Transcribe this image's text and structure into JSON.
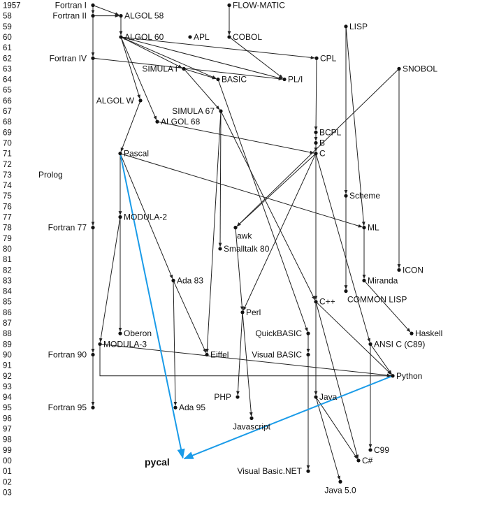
{
  "years": [
    "1957",
    "58",
    "59",
    "60",
    "61",
    "62",
    "63",
    "64",
    "65",
    "66",
    "67",
    "68",
    "69",
    "70",
    "71",
    "72",
    "73",
    "74",
    "75",
    "76",
    "77",
    "78",
    "79",
    "80",
    "81",
    "82",
    "83",
    "84",
    "85",
    "86",
    "87",
    "88",
    "89",
    "90",
    "91",
    "92",
    "93",
    "94",
    "95",
    "96",
    "97",
    "98",
    "99",
    "00",
    "01",
    "02",
    "03"
  ],
  "colors": {
    "edge": "#222222",
    "highlight": "#1a9be8"
  },
  "languages": [
    {
      "id": "fortran1",
      "label": "Fortran I",
      "year": "1957"
    },
    {
      "id": "fortran2",
      "label": "Fortran II",
      "year": "58"
    },
    {
      "id": "algol58",
      "label": "ALGOL 58",
      "year": "58"
    },
    {
      "id": "flowmatic",
      "label": "FLOW-MATIC",
      "year": "1957"
    },
    {
      "id": "lisp",
      "label": "LISP",
      "year": "59"
    },
    {
      "id": "algol60",
      "label": "ALGOL 60",
      "year": "60"
    },
    {
      "id": "apl",
      "label": "APL",
      "year": "60"
    },
    {
      "id": "cobol",
      "label": "COBOL",
      "year": "60"
    },
    {
      "id": "fortran4",
      "label": "Fortran IV",
      "year": "62"
    },
    {
      "id": "cpl",
      "label": "CPL",
      "year": "62"
    },
    {
      "id": "snobol",
      "label": "SNOBOL",
      "year": "63"
    },
    {
      "id": "simula1",
      "label": "SIMULA I",
      "year": "63"
    },
    {
      "id": "basic",
      "label": "BASIC",
      "year": "64"
    },
    {
      "id": "pli",
      "label": "PL/I",
      "year": "64"
    },
    {
      "id": "algolw",
      "label": "ALGOL W",
      "year": "66"
    },
    {
      "id": "simula67",
      "label": "SIMULA 67",
      "year": "67"
    },
    {
      "id": "algol68",
      "label": "ALGOL 68",
      "year": "68"
    },
    {
      "id": "bcpl",
      "label": "BCPL",
      "year": "69"
    },
    {
      "id": "b",
      "label": "B",
      "year": "70"
    },
    {
      "id": "pascal",
      "label": "Pascal",
      "year": "71"
    },
    {
      "id": "c",
      "label": "C",
      "year": "71"
    },
    {
      "id": "prolog",
      "label": "Prolog",
      "year": "73"
    },
    {
      "id": "scheme",
      "label": "Scheme",
      "year": "75"
    },
    {
      "id": "modula2",
      "label": "MODULA-2",
      "year": "77"
    },
    {
      "id": "fortran77",
      "label": "Fortran 77",
      "year": "78"
    },
    {
      "id": "awk",
      "label": "awk",
      "year": "78"
    },
    {
      "id": "ml",
      "label": "ML",
      "year": "78"
    },
    {
      "id": "smalltalk80",
      "label": "Smalltalk 80",
      "year": "80"
    },
    {
      "id": "icon",
      "label": "ICON",
      "year": "82"
    },
    {
      "id": "ada83",
      "label": "Ada 83",
      "year": "83"
    },
    {
      "id": "miranda",
      "label": "Miranda",
      "year": "83"
    },
    {
      "id": "commonlisp",
      "label": "COMMON LISP",
      "year": "84"
    },
    {
      "id": "cpp",
      "label": "C++",
      "year": "85"
    },
    {
      "id": "perl",
      "label": "Perl",
      "year": "86"
    },
    {
      "id": "oberon",
      "label": "Oberon",
      "year": "88"
    },
    {
      "id": "quickbasic",
      "label": "QuickBASIC",
      "year": "88"
    },
    {
      "id": "haskell",
      "label": "Haskell",
      "year": "88"
    },
    {
      "id": "modula3",
      "label": "MODULA-3",
      "year": "89"
    },
    {
      "id": "ansic",
      "label": "ANSI C (C89)",
      "year": "89"
    },
    {
      "id": "fortran90",
      "label": "Fortran 90",
      "year": "90"
    },
    {
      "id": "eiffel",
      "label": "Eiffel",
      "year": "90"
    },
    {
      "id": "visualbasic",
      "label": "Visual BASIC",
      "year": "90"
    },
    {
      "id": "python",
      "label": "Python",
      "year": "92"
    },
    {
      "id": "php",
      "label": "PHP",
      "year": "94"
    },
    {
      "id": "java",
      "label": "Java",
      "year": "94"
    },
    {
      "id": "fortran95",
      "label": "Fortran 95",
      "year": "95"
    },
    {
      "id": "ada95",
      "label": "Ada 95",
      "year": "95"
    },
    {
      "id": "javascript",
      "label": "Javascript",
      "year": "96"
    },
    {
      "id": "c99",
      "label": "C99",
      "year": "99"
    },
    {
      "id": "csharp",
      "label": "C#",
      "year": "00"
    },
    {
      "id": "vbnet",
      "label": "Visual Basic.NET",
      "year": "01"
    },
    {
      "id": "java5",
      "label": "Java 5.0",
      "year": "02"
    }
  ],
  "highlight_label": "pycal",
  "edges": [
    [
      "fortran1",
      "fortran2"
    ],
    [
      "fortran1",
      "algol58"
    ],
    [
      "fortran2",
      "algol58"
    ],
    [
      "fortran2",
      "fortran4"
    ],
    [
      "fortran4",
      "fortran77"
    ],
    [
      "fortran77",
      "fortran90"
    ],
    [
      "fortran90",
      "fortran95"
    ],
    [
      "fortran4",
      "pli"
    ],
    [
      "algol58",
      "algol60"
    ],
    [
      "flowmatic",
      "cobol"
    ],
    [
      "cobol",
      "pli"
    ],
    [
      "algol60",
      "pli"
    ],
    [
      "algol60",
      "simula1"
    ],
    [
      "algol60",
      "basic"
    ],
    [
      "algol60",
      "algolw"
    ],
    [
      "algol60",
      "algol68"
    ],
    [
      "algol60",
      "cpl"
    ],
    [
      "simula1",
      "simula67"
    ],
    [
      "simula1",
      "basic"
    ],
    [
      "cpl",
      "bcpl"
    ],
    [
      "bcpl",
      "b"
    ],
    [
      "b",
      "c"
    ],
    [
      "algol68",
      "c"
    ],
    [
      "algolw",
      "pascal"
    ],
    [
      "pascal",
      "modula2"
    ],
    [
      "pascal",
      "ada83"
    ],
    [
      "pascal",
      "ml"
    ],
    [
      "modula2",
      "oberon"
    ],
    [
      "modula2",
      "modula3"
    ],
    [
      "simula67",
      "smalltalk80"
    ],
    [
      "simula67",
      "eiffel"
    ],
    [
      "simula67",
      "cpp"
    ],
    [
      "ada83",
      "eiffel"
    ],
    [
      "ada83",
      "ada95"
    ],
    [
      "c",
      "cpp"
    ],
    [
      "c",
      "ansic"
    ],
    [
      "c",
      "awk"
    ],
    [
      "c",
      "perl"
    ],
    [
      "snobol",
      "awk"
    ],
    [
      "awk",
      "perl"
    ],
    [
      "perl",
      "php"
    ],
    [
      "perl",
      "javascript"
    ],
    [
      "lisp",
      "scheme"
    ],
    [
      "scheme",
      "commonlisp"
    ],
    [
      "lisp",
      "ml"
    ],
    [
      "ml",
      "miranda"
    ],
    [
      "miranda",
      "haskell"
    ],
    [
      "snobol",
      "icon"
    ],
    [
      "basic",
      "quickbasic"
    ],
    [
      "quickbasic",
      "visualbasic"
    ],
    [
      "visualbasic",
      "vbnet"
    ],
    [
      "cpp",
      "java"
    ],
    [
      "cpp",
      "csharp"
    ],
    [
      "java",
      "csharp"
    ],
    [
      "java",
      "java5"
    ],
    [
      "ansic",
      "c99"
    ],
    [
      "ansic",
      "python"
    ],
    [
      "modula3",
      "python"
    ],
    [
      "cpp",
      "python"
    ]
  ],
  "highlight_edges": [
    [
      "pascal",
      "pycal"
    ],
    [
      "python",
      "pycal"
    ]
  ]
}
